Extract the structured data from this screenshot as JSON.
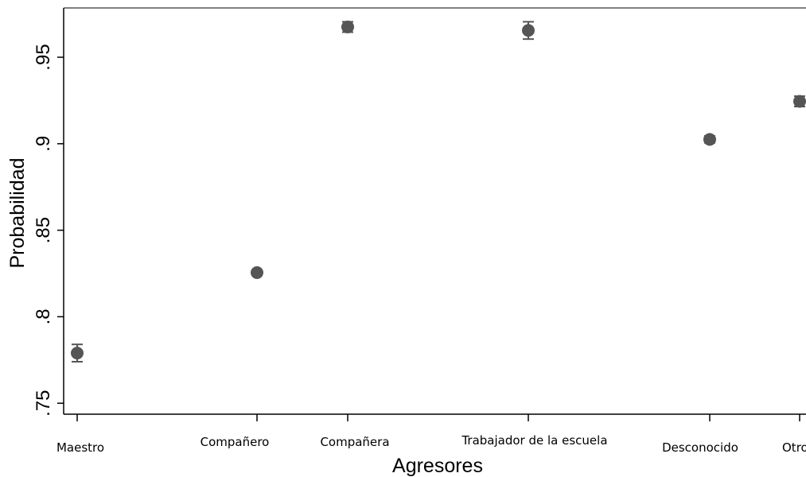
{
  "chart_data": {
    "type": "scatter",
    "xlabel": "Agresores",
    "ylabel": "Probabilidad",
    "ylim": [
      0.75,
      0.95
    ],
    "yticks": [
      0.75,
      0.8,
      0.85,
      0.9,
      0.95
    ],
    "ytick_labels": [
      ".75",
      ".8",
      ".85",
      ".9",
      ".95"
    ],
    "categories": [
      "Maestro",
      "Compañero",
      "Compañera",
      "Trabajador de la escuela",
      "Desconocido",
      "Otro"
    ],
    "series": [
      {
        "values": [
          0.779,
          0.8255,
          0.9675,
          0.9655,
          0.9025,
          0.9245
        ],
        "ci_low": [
          0.774,
          0.8245,
          0.9645,
          0.9605,
          0.9005,
          0.9215
        ],
        "ci_high": [
          0.784,
          0.8265,
          0.9705,
          0.9705,
          0.9045,
          0.9275
        ]
      }
    ],
    "grid": false,
    "colors": {
      "marker": "#555555",
      "axis": "#000000",
      "errorbar": "#555555"
    }
  }
}
